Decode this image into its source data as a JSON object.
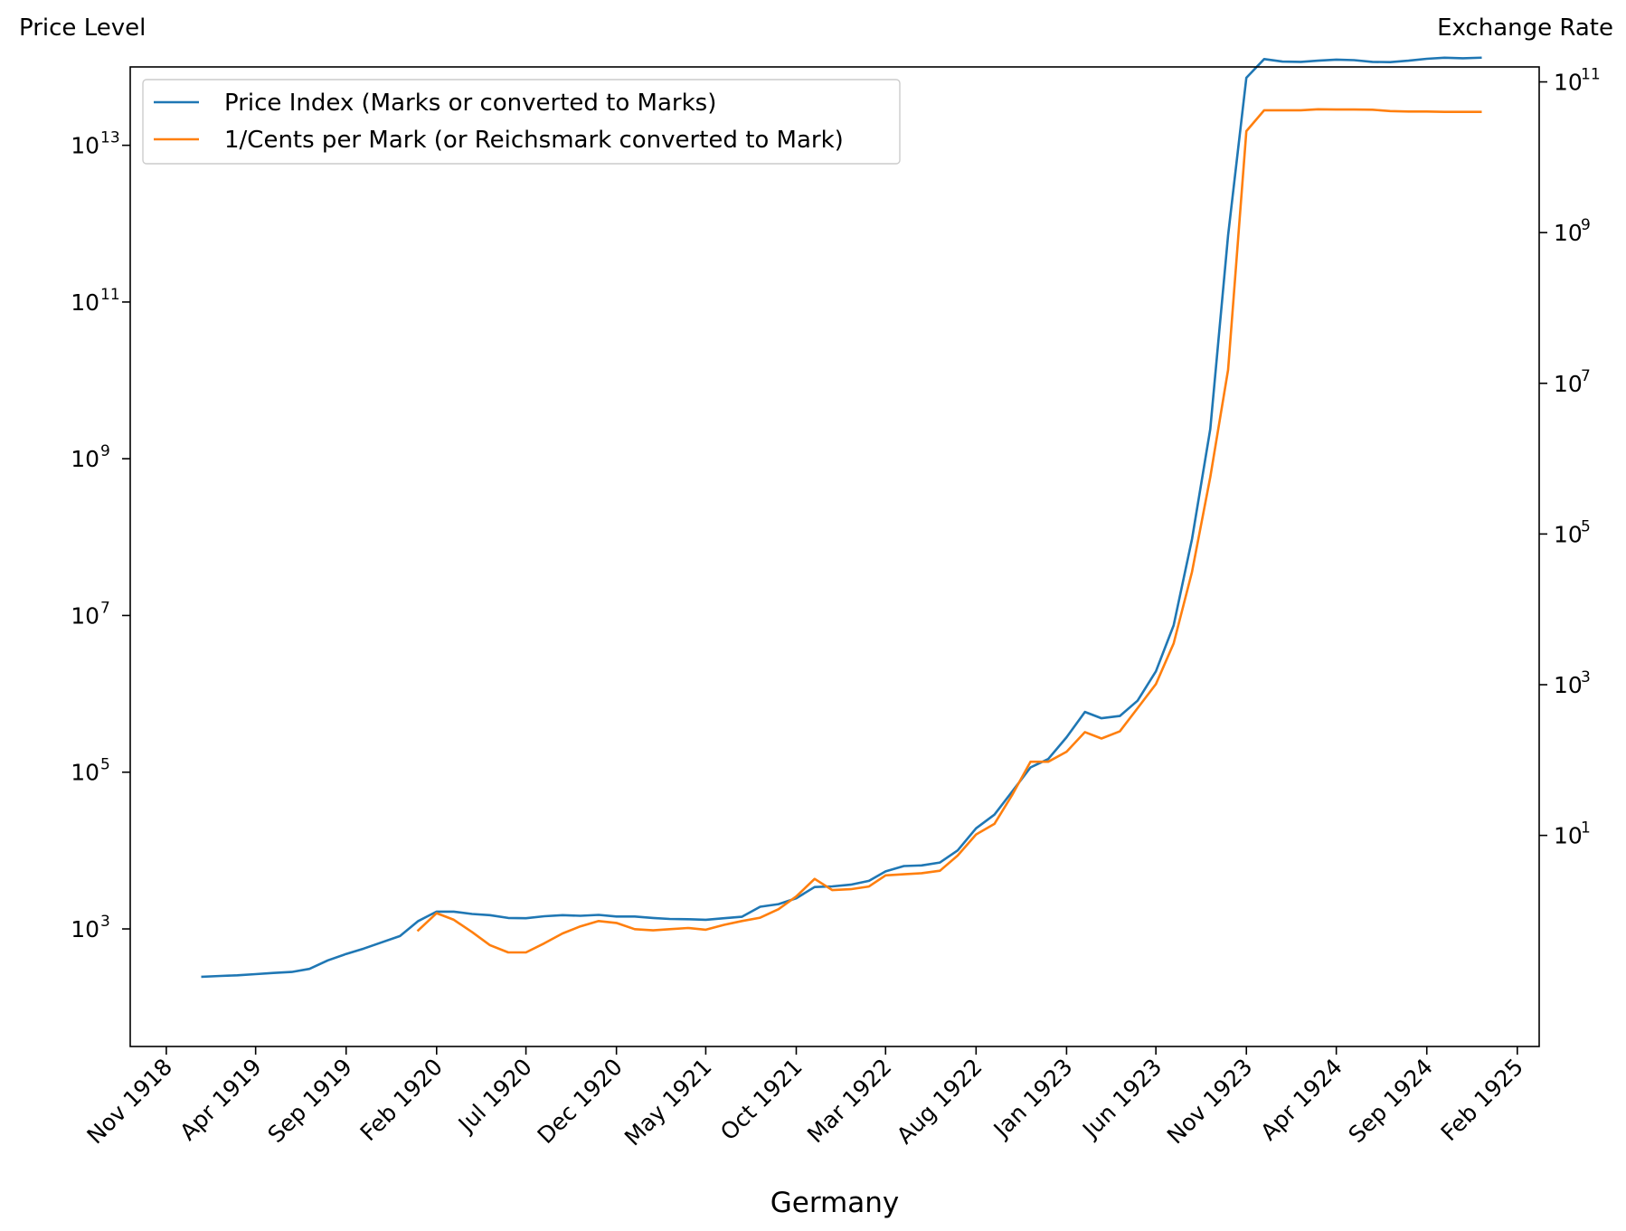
{
  "left_axis_title": "Price Level",
  "right_axis_title": "Exchange Rate",
  "chart_data": {
    "type": "line",
    "xlabel": "Germany",
    "x_axis": {
      "type": "date",
      "range": [
        "1918-09-01",
        "1925-03-10"
      ],
      "ticks": [
        {
          "date": "1918-11-01",
          "label": "Nov 1918"
        },
        {
          "date": "1919-04-01",
          "label": "Apr 1919"
        },
        {
          "date": "1919-09-01",
          "label": "Sep 1919"
        },
        {
          "date": "1920-02-01",
          "label": "Feb 1920"
        },
        {
          "date": "1920-07-01",
          "label": "Jul 1920"
        },
        {
          "date": "1920-12-01",
          "label": "Dec 1920"
        },
        {
          "date": "1921-05-01",
          "label": "May 1921"
        },
        {
          "date": "1921-10-01",
          "label": "Oct 1921"
        },
        {
          "date": "1922-03-01",
          "label": "Mar 1922"
        },
        {
          "date": "1922-08-01",
          "label": "Aug 1922"
        },
        {
          "date": "1923-01-01",
          "label": "Jan 1923"
        },
        {
          "date": "1923-06-01",
          "label": "Jun 1923"
        },
        {
          "date": "1923-11-01",
          "label": "Nov 1923"
        },
        {
          "date": "1924-04-01",
          "label": "Apr 1924"
        },
        {
          "date": "1924-09-01",
          "label": "Sep 1924"
        },
        {
          "date": "1925-02-01",
          "label": "Feb 1925"
        }
      ]
    },
    "left_axis": {
      "scale": "log",
      "ylim": [
        31.6,
        100000000000000.0
      ],
      "ticks": [
        {
          "value": 1000,
          "exponent": "3"
        },
        {
          "value": 100000,
          "exponent": "5"
        },
        {
          "value": 10000000,
          "exponent": "7"
        },
        {
          "value": 1000000000,
          "exponent": "9"
        },
        {
          "value": 100000000000,
          "exponent": "11"
        },
        {
          "value": 10000000000000,
          "exponent": "13"
        }
      ]
    },
    "right_axis": {
      "scale": "log",
      "ylim": [
        0.0158,
        158000000000.0
      ],
      "ticks": [
        {
          "value": 10,
          "exponent": "1"
        },
        {
          "value": 1000,
          "exponent": "3"
        },
        {
          "value": 100000,
          "exponent": "5"
        },
        {
          "value": 10000000,
          "exponent": "7"
        },
        {
          "value": 1000000000,
          "exponent": "9"
        },
        {
          "value": 100000000000,
          "exponent": "11"
        }
      ]
    },
    "legend": {
      "position": "upper left"
    },
    "series": [
      {
        "name": "Price Index (Marks or converted to Marks)",
        "axis": "left",
        "color": "#1f77b4",
        "points": [
          [
            "1919-01-01",
            245
          ],
          [
            "1919-02-01",
            251
          ],
          [
            "1919-03-01",
            256
          ],
          [
            "1919-04-01",
            265
          ],
          [
            "1919-05-01",
            274
          ],
          [
            "1919-06-01",
            282
          ],
          [
            "1919-07-01",
            309
          ],
          [
            "1919-08-01",
            397
          ],
          [
            "1919-09-01",
            479
          ],
          [
            "1919-10-01",
            562
          ],
          [
            "1919-11-01",
            676
          ],
          [
            "1919-12-01",
            812
          ],
          [
            "1920-01-01",
            1260
          ],
          [
            "1920-02-01",
            1660
          ],
          [
            "1920-03-01",
            1660
          ],
          [
            "1920-04-01",
            1550
          ],
          [
            "1920-05-01",
            1500
          ],
          [
            "1920-06-01",
            1380
          ],
          [
            "1920-07-01",
            1370
          ],
          [
            "1920-08-01",
            1450
          ],
          [
            "1920-09-01",
            1500
          ],
          [
            "1920-10-01",
            1470
          ],
          [
            "1920-11-01",
            1510
          ],
          [
            "1920-12-01",
            1440
          ],
          [
            "1921-01-01",
            1440
          ],
          [
            "1921-02-01",
            1380
          ],
          [
            "1921-03-01",
            1340
          ],
          [
            "1921-04-01",
            1330
          ],
          [
            "1921-05-01",
            1310
          ],
          [
            "1921-06-01",
            1370
          ],
          [
            "1921-07-01",
            1430
          ],
          [
            "1921-08-01",
            1920
          ],
          [
            "1921-09-01",
            2070
          ],
          [
            "1921-10-01",
            2460
          ],
          [
            "1921-11-01",
            3420
          ],
          [
            "1921-12-01",
            3490
          ],
          [
            "1922-01-01",
            3670
          ],
          [
            "1922-02-01",
            4100
          ],
          [
            "1922-03-01",
            5430
          ],
          [
            "1922-04-01",
            6350
          ],
          [
            "1922-05-01",
            6460
          ],
          [
            "1922-06-01",
            7030
          ],
          [
            "1922-07-01",
            10060
          ],
          [
            "1922-08-01",
            19200
          ],
          [
            "1922-09-01",
            28700
          ],
          [
            "1922-10-01",
            56600
          ],
          [
            "1922-11-01",
            115000
          ],
          [
            "1922-12-01",
            147000
          ],
          [
            "1923-01-01",
            279000
          ],
          [
            "1923-02-01",
            588000
          ],
          [
            "1923-03-01",
            488000
          ],
          [
            "1923-04-01",
            522000
          ],
          [
            "1923-05-01",
            817000
          ],
          [
            "1923-06-01",
            1940000
          ],
          [
            "1923-07-01",
            7480000
          ],
          [
            "1923-08-01",
            94400000
          ],
          [
            "1923-09-01",
            2390000000
          ],
          [
            "1923-10-01",
            709000000000
          ],
          [
            "1923-11-01",
            72600000000000
          ],
          [
            "1923-12-01",
            126000000000000
          ],
          [
            "1924-01-01",
            117000000000000
          ],
          [
            "1924-02-01",
            116000000000000
          ],
          [
            "1924-03-01",
            120000000000000
          ],
          [
            "1924-04-01",
            124000000000000
          ],
          [
            "1924-05-01",
            122000000000000
          ],
          [
            "1924-06-01",
            116000000000000
          ],
          [
            "1924-07-01",
            115000000000000
          ],
          [
            "1924-08-01",
            120000000000000
          ],
          [
            "1924-09-01",
            127000000000000
          ],
          [
            "1924-10-01",
            131000000000000
          ],
          [
            "1924-11-01",
            129000000000000
          ],
          [
            "1924-12-01",
            131000000000000
          ]
        ]
      },
      {
        "name": "1/Cents per Mark (or Reichsmark converted to Mark)",
        "axis": "right",
        "color": "#ff7f0e",
        "points": [
          [
            "1920-01-01",
            0.55
          ],
          [
            "1920-02-01",
            0.93
          ],
          [
            "1920-03-01",
            0.76
          ],
          [
            "1920-04-01",
            0.52
          ],
          [
            "1920-05-01",
            0.35
          ],
          [
            "1920-06-01",
            0.28
          ],
          [
            "1920-07-01",
            0.28
          ],
          [
            "1920-08-01",
            0.37
          ],
          [
            "1920-09-01",
            0.5
          ],
          [
            "1920-10-01",
            0.62
          ],
          [
            "1920-11-01",
            0.73
          ],
          [
            "1920-12-01",
            0.69
          ],
          [
            "1921-01-01",
            0.57
          ],
          [
            "1921-02-01",
            0.55
          ],
          [
            "1921-03-01",
            0.57
          ],
          [
            "1921-04-01",
            0.59
          ],
          [
            "1921-05-01",
            0.56
          ],
          [
            "1921-06-01",
            0.65
          ],
          [
            "1921-07-01",
            0.73
          ],
          [
            "1921-08-01",
            0.81
          ],
          [
            "1921-09-01",
            1.05
          ],
          [
            "1921-10-01",
            1.55
          ],
          [
            "1921-11-01",
            2.65
          ],
          [
            "1921-12-01",
            1.88
          ],
          [
            "1922-01-01",
            1.93
          ],
          [
            "1922-02-01",
            2.1
          ],
          [
            "1922-03-01",
            2.95
          ],
          [
            "1922-04-01",
            3.05
          ],
          [
            "1922-05-01",
            3.15
          ],
          [
            "1922-06-01",
            3.4
          ],
          [
            "1922-07-01",
            5.4
          ],
          [
            "1922-08-01",
            10.3
          ],
          [
            "1922-09-01",
            14.2
          ],
          [
            "1922-10-01",
            34.3
          ],
          [
            "1922-11-01",
            95
          ],
          [
            "1922-12-01",
            95
          ],
          [
            "1923-01-01",
            129
          ],
          [
            "1923-02-01",
            235
          ],
          [
            "1923-03-01",
            193
          ],
          [
            "1923-04-01",
            240
          ],
          [
            "1923-05-01",
            487
          ],
          [
            "1923-06-01",
            1020
          ],
          [
            "1923-07-01",
            3530
          ],
          [
            "1923-08-01",
            31400
          ],
          [
            "1923-09-01",
            569000
          ],
          [
            "1923-10-01",
            15100000
          ],
          [
            "1923-11-01",
            22200000000
          ],
          [
            "1923-12-01",
            42000000000
          ],
          [
            "1924-01-01",
            42000000000
          ],
          [
            "1924-02-01",
            42000000000
          ],
          [
            "1924-03-01",
            43300000000
          ],
          [
            "1924-04-01",
            43000000000
          ],
          [
            "1924-05-01",
            43000000000
          ],
          [
            "1924-06-01",
            42700000000
          ],
          [
            "1924-07-01",
            41000000000
          ],
          [
            "1924-08-01",
            40500000000
          ],
          [
            "1924-09-01",
            40500000000
          ],
          [
            "1924-10-01",
            40000000000
          ],
          [
            "1924-11-01",
            40000000000
          ],
          [
            "1924-12-01",
            40000000000
          ]
        ]
      }
    ]
  }
}
